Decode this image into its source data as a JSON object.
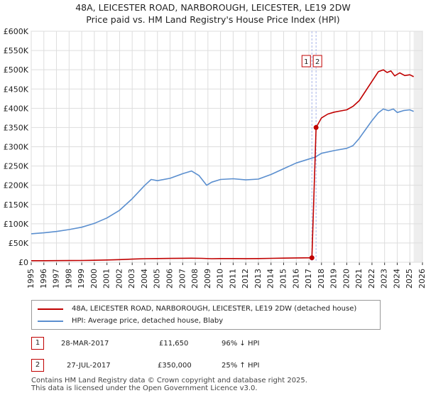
{
  "chart_data": {
    "type": "line",
    "title": "48A, LEICESTER ROAD, NARBOROUGH, LEICESTER, LE19 2DW",
    "subtitle": "Price paid vs. HM Land Registry's House Price Index (HPI)",
    "xlabel": "",
    "ylabel": "",
    "xlim": [
      1995,
      2026
    ],
    "ylim": [
      0,
      600000
    ],
    "x_ticks": [
      "1995",
      "1996",
      "1997",
      "1998",
      "1999",
      "2000",
      "2001",
      "2002",
      "2003",
      "2004",
      "2005",
      "2006",
      "2007",
      "2008",
      "2009",
      "2010",
      "2011",
      "2012",
      "2013",
      "2014",
      "2015",
      "2016",
      "2017",
      "2018",
      "2019",
      "2020",
      "2021",
      "2022",
      "2023",
      "2024",
      "2025",
      "2026"
    ],
    "y_ticks": [
      {
        "value": 0,
        "label": "£0"
      },
      {
        "value": 50000,
        "label": "£50K"
      },
      {
        "value": 100000,
        "label": "£100K"
      },
      {
        "value": 150000,
        "label": "£150K"
      },
      {
        "value": 200000,
        "label": "£200K"
      },
      {
        "value": 250000,
        "label": "£250K"
      },
      {
        "value": 300000,
        "label": "£300K"
      },
      {
        "value": 350000,
        "label": "£350K"
      },
      {
        "value": 400000,
        "label": "£400K"
      },
      {
        "value": 450000,
        "label": "£450K"
      },
      {
        "value": 500000,
        "label": "£500K"
      },
      {
        "value": 550000,
        "label": "£550K"
      },
      {
        "value": 600000,
        "label": "£600K"
      }
    ],
    "grid": true,
    "series": [
      {
        "name": "48A, LEICESTER ROAD, NARBOROUGH, LEICESTER, LE19 2DW (detached house)",
        "color": "#c00000",
        "points": [
          [
            1995.0,
            4000
          ],
          [
            1996.0,
            4100
          ],
          [
            1997.0,
            4200
          ],
          [
            1998.0,
            4400
          ],
          [
            1999.0,
            4700
          ],
          [
            2000.0,
            5100
          ],
          [
            2001.0,
            5900
          ],
          [
            2002.0,
            6900
          ],
          [
            2003.0,
            8200
          ],
          [
            2004.0,
            9300
          ],
          [
            2005.0,
            9600
          ],
          [
            2006.0,
            9900
          ],
          [
            2007.0,
            10400
          ],
          [
            2007.7,
            10600
          ],
          [
            2008.5,
            10200
          ],
          [
            2009.3,
            9300
          ],
          [
            2010.0,
            9600
          ],
          [
            2011.0,
            9600
          ],
          [
            2012.0,
            9500
          ],
          [
            2013.0,
            9600
          ],
          [
            2014.0,
            10100
          ],
          [
            2015.0,
            10700
          ],
          [
            2016.0,
            11200
          ],
          [
            2017.24,
            11650
          ],
          [
            2017.57,
            350000
          ],
          [
            2018.0,
            375000
          ],
          [
            2018.5,
            385000
          ],
          [
            2019.0,
            390000
          ],
          [
            2019.5,
            393000
          ],
          [
            2020.0,
            396000
          ],
          [
            2020.5,
            405000
          ],
          [
            2021.0,
            420000
          ],
          [
            2021.5,
            445000
          ],
          [
            2022.0,
            470000
          ],
          [
            2022.5,
            495000
          ],
          [
            2022.9,
            500000
          ],
          [
            2023.2,
            493000
          ],
          [
            2023.5,
            497000
          ],
          [
            2023.8,
            484000
          ],
          [
            2024.2,
            492000
          ],
          [
            2024.6,
            485000
          ],
          [
            2025.0,
            487000
          ],
          [
            2025.3,
            482000
          ]
        ]
      },
      {
        "name": "HPI: Average price, detached house, Blaby",
        "color": "#5b8fcf",
        "points": [
          [
            1995.0,
            74000
          ],
          [
            1996.0,
            76500
          ],
          [
            1997.0,
            80000
          ],
          [
            1998.0,
            85000
          ],
          [
            1999.0,
            91000
          ],
          [
            2000.0,
            101000
          ],
          [
            2001.0,
            115000
          ],
          [
            2002.0,
            135000
          ],
          [
            2003.0,
            165000
          ],
          [
            2004.0,
            200000
          ],
          [
            2004.5,
            215000
          ],
          [
            2005.0,
            212000
          ],
          [
            2006.0,
            218000
          ],
          [
            2007.0,
            230000
          ],
          [
            2007.7,
            237000
          ],
          [
            2008.3,
            225000
          ],
          [
            2008.9,
            200000
          ],
          [
            2009.3,
            208000
          ],
          [
            2010.0,
            215000
          ],
          [
            2011.0,
            217000
          ],
          [
            2012.0,
            214000
          ],
          [
            2013.0,
            216000
          ],
          [
            2014.0,
            228000
          ],
          [
            2015.0,
            243000
          ],
          [
            2016.0,
            258000
          ],
          [
            2017.0,
            268000
          ],
          [
            2017.5,
            273000
          ],
          [
            2018.0,
            283000
          ],
          [
            2019.0,
            290000
          ],
          [
            2020.0,
            296000
          ],
          [
            2020.5,
            303000
          ],
          [
            2021.0,
            322000
          ],
          [
            2021.5,
            345000
          ],
          [
            2022.0,
            368000
          ],
          [
            2022.5,
            388000
          ],
          [
            2022.9,
            398000
          ],
          [
            2023.3,
            394000
          ],
          [
            2023.7,
            398000
          ],
          [
            2024.0,
            389000
          ],
          [
            2024.5,
            394000
          ],
          [
            2025.0,
            396000
          ],
          [
            2025.3,
            392000
          ]
        ]
      }
    ],
    "sales": [
      {
        "id": "1",
        "date": "28-MAR-2017",
        "price": "£11,650",
        "hpi_change": "96% ↓ HPI",
        "x": 2017.24,
        "y": 11650
      },
      {
        "id": "2",
        "date": "27-JUL-2017",
        "price": "£350,000",
        "hpi_change": "25% ↑ HPI",
        "x": 2017.57,
        "y": 350000
      }
    ],
    "legend": {
      "items": [
        {
          "label": "48A, LEICESTER ROAD, NARBOROUGH, LEICESTER, LE19 2DW (detached house)",
          "color": "#c00000"
        },
        {
          "label": "HPI: Average price, detached house, Blaby",
          "color": "#5b8fcf"
        }
      ]
    }
  },
  "footer": {
    "line1": "Contains HM Land Registry data © Crown copyright and database right 2025.",
    "line2": "This data is licensed under the Open Government Licence v3.0."
  }
}
